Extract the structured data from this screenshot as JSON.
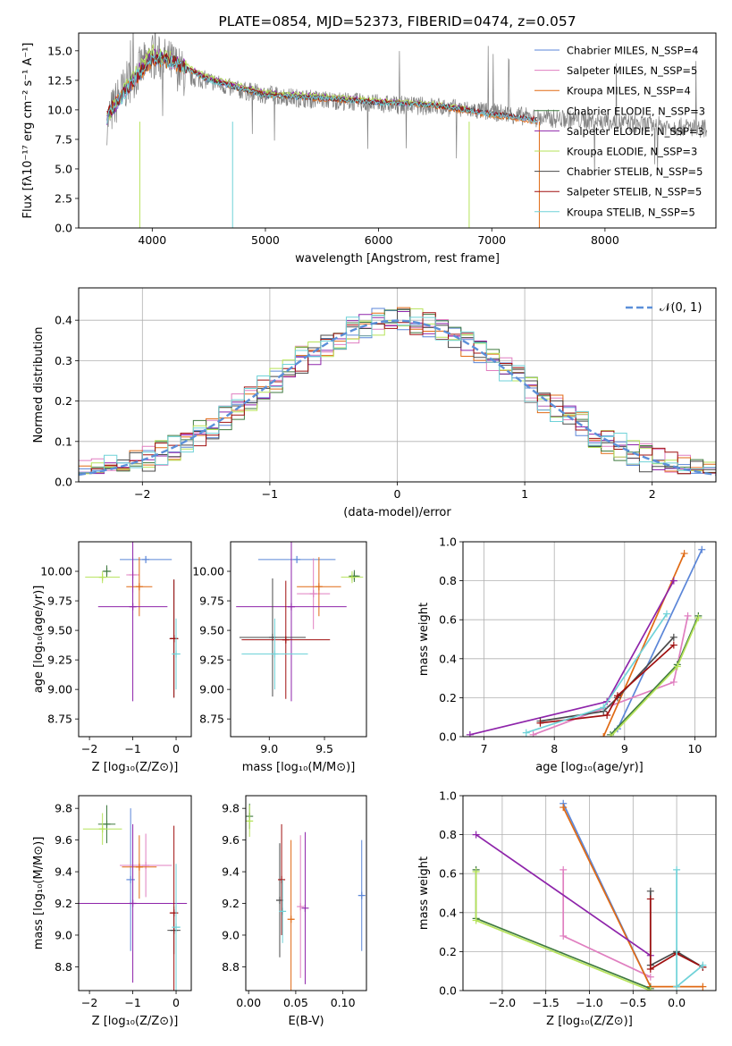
{
  "colors": {
    "chabrier_miles": "#5b86d8",
    "salpeter_miles": "#e07fc0",
    "kroupa_miles": "#e06a14",
    "chabrier_elodie": "#3f7a3f",
    "salpeter_elodie": "#8e24aa",
    "kroupa_elodie": "#b6e35a",
    "chabrier_stelib": "#4a4a4a",
    "salpeter_stelib": "#a01010",
    "kroupa_stelib": "#6fd2d8",
    "gaussian": "#5b8fd9",
    "observed": "#808080"
  },
  "chart_data": [
    {
      "id": "spectrum",
      "type": "line",
      "title": "PLATE=0854, MJD=52373, FIBERID=0474, z=0.057",
      "xlabel": "wavelength [Angstrom, rest frame]",
      "ylabel": "Flux [fλ10⁻¹⁷ erg cm⁻² s⁻¹ A⁻¹]",
      "xlim": [
        3350,
        8980
      ],
      "ylim": [
        0,
        16.5
      ],
      "xticks": [
        "4000",
        "5000",
        "6000",
        "7000",
        "8000"
      ],
      "yticks": [
        "0.0",
        "2.5",
        "5.0",
        "7.5",
        "10.0",
        "12.5",
        "15.0"
      ],
      "legend_position": "top-right",
      "series": [
        {
          "name": "Chabrier MILES, N_SSP=4",
          "color_key": "chabrier_miles",
          "x": [
            3600,
            3800,
            4000,
            4200,
            4500,
            5000,
            5500,
            6000,
            6500,
            7000,
            7400
          ],
          "y": [
            9.5,
            12.0,
            14.3,
            14.0,
            12.5,
            11.2,
            11.0,
            10.6,
            10.4,
            9.6,
            9.1
          ]
        },
        {
          "name": "Salpeter MILES, N_SSP=5",
          "color_key": "salpeter_miles",
          "x": [
            3600,
            3800,
            4000,
            4200,
            4500,
            5000,
            5500,
            6000,
            6500,
            7000,
            7400
          ],
          "y": [
            9.6,
            12.1,
            14.4,
            14.0,
            12.6,
            11.3,
            11.0,
            10.7,
            10.4,
            9.6,
            9.1
          ]
        },
        {
          "name": "Kroupa MILES, N_SSP=4",
          "color_key": "kroupa_miles",
          "x": [
            3600,
            3800,
            4000,
            4200,
            4500,
            5000,
            5500,
            6000,
            6500,
            7000,
            7400
          ],
          "y": [
            9.5,
            12.0,
            14.2,
            13.9,
            12.5,
            11.2,
            10.9,
            10.6,
            10.3,
            9.5,
            9.0
          ]
        },
        {
          "name": "Chabrier ELODIE, N_SSP=3",
          "color_key": "chabrier_elodie",
          "x": [
            3600,
            3800,
            4000,
            4200,
            4500,
            5000,
            5500,
            6000,
            6500,
            6800
          ],
          "y": [
            9.4,
            12.2,
            14.6,
            14.1,
            12.6,
            11.4,
            11.1,
            10.7,
            10.4,
            10.0
          ]
        },
        {
          "name": "Salpeter ELODIE, N_SSP=3",
          "color_key": "salpeter_elodie",
          "x": [
            3600,
            3800,
            4000,
            4200,
            4500,
            5000,
            5500,
            6000,
            6500,
            6800
          ],
          "y": [
            9.3,
            12.3,
            14.8,
            14.2,
            12.7,
            11.5,
            11.2,
            10.8,
            10.5,
            10.1
          ]
        },
        {
          "name": "Kroupa ELODIE, N_SSP=3",
          "color_key": "kroupa_elodie",
          "x": [
            3600,
            3800,
            4000,
            4200,
            4500,
            5000,
            5500,
            6000,
            6500,
            6800
          ],
          "y": [
            9.4,
            12.4,
            15.0,
            14.3,
            12.8,
            11.5,
            11.2,
            10.8,
            10.5,
            10.1
          ]
        },
        {
          "name": "Chabrier STELIB, N_SSP=5",
          "color_key": "chabrier_stelib",
          "x": [
            3600,
            3800,
            4000,
            4200,
            4500,
            5000,
            5500,
            6000,
            6500,
            7000,
            7400
          ],
          "y": [
            9.5,
            12.0,
            14.3,
            14.0,
            12.5,
            11.2,
            11.0,
            10.6,
            10.4,
            9.7,
            9.2
          ]
        },
        {
          "name": "Salpeter STELIB, N_SSP=5",
          "color_key": "salpeter_stelib",
          "x": [
            3600,
            3800,
            4000,
            4200,
            4500,
            5000,
            5500,
            6000,
            6500,
            7000,
            7400
          ],
          "y": [
            9.6,
            12.1,
            14.4,
            14.1,
            12.6,
            11.3,
            11.0,
            10.7,
            10.4,
            9.7,
            9.2
          ]
        },
        {
          "name": "Kroupa STELIB, N_SSP=5",
          "color_key": "kroupa_stelib",
          "x": [
            3600,
            3800,
            4000,
            4200,
            4500,
            5000,
            5500,
            6000,
            6500,
            7000,
            7400
          ],
          "y": [
            9.4,
            12.0,
            14.5,
            14.0,
            12.5,
            11.2,
            11.0,
            10.6,
            10.4,
            9.6,
            9.1
          ]
        }
      ],
      "observed": {
        "color_key": "observed",
        "x": [
          3600,
          3700,
          3800,
          3900,
          4000,
          4100,
          4200,
          4300,
          4500,
          4700,
          5000,
          5300,
          5600,
          5900,
          6200,
          6500,
          6800,
          7100,
          7400,
          7700,
          8000,
          8300,
          8600,
          8900
        ],
        "y": [
          9.0,
          11.0,
          12.5,
          13.5,
          14.5,
          14.2,
          13.8,
          12.8,
          12.5,
          11.8,
          11.3,
          11.0,
          10.8,
          10.6,
          10.4,
          10.3,
          10.0,
          9.7,
          9.3,
          9.2,
          9.0,
          8.8,
          8.6,
          8.4
        ]
      }
    },
    {
      "id": "residuals",
      "type": "line",
      "xlabel": "(data-model)/error",
      "ylabel": "Normed distribution",
      "xlim": [
        -2.5,
        2.5
      ],
      "ylim": [
        0,
        0.48
      ],
      "xticks": [
        "−2",
        "−1",
        "0",
        "1",
        "2"
      ],
      "yticks": [
        "0.0",
        "0.1",
        "0.2",
        "0.3",
        "0.4"
      ],
      "grid": true,
      "legend_position": "top-right",
      "legend": "𝒩(0, 1)",
      "gaussian": {
        "mean": 0,
        "sigma": 1
      },
      "histogram_bins": [
        -2.5,
        2.5,
        50
      ]
    },
    {
      "id": "age_vs_z",
      "type": "scatter",
      "xlabel": "Z [log₁₀(Z/Z⊙)]",
      "ylabel": "age  [log₁₀(age/yr)]",
      "xlim": [
        -2.25,
        0.35
      ],
      "ylim": [
        8.6,
        10.25
      ],
      "xticks": [
        "−2",
        "−1",
        "0"
      ],
      "yticks": [
        "8.75",
        "9.00",
        "9.25",
        "9.50",
        "9.75",
        "10.00"
      ],
      "points": [
        {
          "x": -0.7,
          "y": 10.1,
          "xerr": 0.6,
          "yerr": 0.0,
          "color_key": "chabrier_miles"
        },
        {
          "x": -1.0,
          "y": 9.97,
          "xerr": 0.15,
          "yerr": 0.15,
          "color_key": "salpeter_miles"
        },
        {
          "x": -0.85,
          "y": 9.87,
          "xerr": 0.3,
          "yerr": 0.25,
          "color_key": "kroupa_miles"
        },
        {
          "x": -1.6,
          "y": 10.0,
          "xerr": 0.1,
          "yerr": 0.05,
          "color_key": "chabrier_elodie"
        },
        {
          "x": -1.0,
          "y": 9.7,
          "xerr": 0.8,
          "yerr": 0.8,
          "color_key": "salpeter_elodie"
        },
        {
          "x": -1.7,
          "y": 9.95,
          "xerr": 0.4,
          "yerr": 0.05,
          "color_key": "kroupa_elodie"
        },
        {
          "x": -0.05,
          "y": 9.43,
          "xerr": 0.1,
          "yerr": 0.5,
          "color_key": "chabrier_stelib"
        },
        {
          "x": -0.05,
          "y": 9.43,
          "xerr": 0.1,
          "yerr": 0.5,
          "color_key": "salpeter_stelib"
        },
        {
          "x": 0.0,
          "y": 9.3,
          "xerr": 0.1,
          "yerr": 0.3,
          "color_key": "kroupa_stelib"
        }
      ]
    },
    {
      "id": "age_vs_mass",
      "type": "scatter",
      "xlabel": "mass [log₁₀(M/M⊙)]",
      "ylabel": "",
      "xlim": [
        8.65,
        9.88
      ],
      "ylim": [
        8.6,
        10.25
      ],
      "xticks": [
        "9.0",
        "9.5"
      ],
      "yticks": [
        "8.75",
        "9.00",
        "9.25",
        "9.50",
        "9.75",
        "10.00"
      ],
      "points": [
        {
          "x": 9.25,
          "y": 10.1,
          "xerr": 0.35,
          "yerr": 0.0,
          "color_key": "chabrier_miles"
        },
        {
          "x": 9.4,
          "y": 9.81,
          "xerr": 0.15,
          "yerr": 0.3,
          "color_key": "salpeter_miles"
        },
        {
          "x": 9.45,
          "y": 9.87,
          "xerr": 0.2,
          "yerr": 0.25,
          "color_key": "kroupa_miles"
        },
        {
          "x": 9.77,
          "y": 9.96,
          "xerr": 0.05,
          "yerr": 0.05,
          "color_key": "chabrier_elodie"
        },
        {
          "x": 9.2,
          "y": 9.7,
          "xerr": 0.5,
          "yerr": 0.8,
          "color_key": "salpeter_elodie"
        },
        {
          "x": 9.75,
          "y": 9.95,
          "xerr": 0.1,
          "yerr": 0.05,
          "color_key": "kroupa_elodie"
        },
        {
          "x": 9.03,
          "y": 9.44,
          "xerr": 0.3,
          "yerr": 0.5,
          "color_key": "chabrier_stelib"
        },
        {
          "x": 9.15,
          "y": 9.42,
          "xerr": 0.4,
          "yerr": 0.5,
          "color_key": "salpeter_stelib"
        },
        {
          "x": 9.05,
          "y": 9.3,
          "xerr": 0.3,
          "yerr": 0.3,
          "color_key": "kroupa_stelib"
        }
      ]
    },
    {
      "id": "weight_vs_age",
      "type": "line",
      "xlabel": "age  [log₁₀(age/yr)]",
      "ylabel": "mass weight",
      "xlim": [
        6.7,
        10.3
      ],
      "ylim": [
        0,
        1.0
      ],
      "xticks": [
        "7",
        "8",
        "9",
        "10"
      ],
      "yticks": [
        "0.0",
        "0.2",
        "0.4",
        "0.6",
        "0.8",
        "1.0"
      ],
      "grid": true,
      "series": [
        {
          "color_key": "chabrier_miles",
          "x": [
            8.9,
            10.1
          ],
          "y": [
            0.04,
            0.96
          ]
        },
        {
          "color_key": "salpeter_miles",
          "x": [
            7.7,
            9.7,
            9.9
          ],
          "y": [
            0.01,
            0.28,
            0.62
          ]
        },
        {
          "color_key": "kroupa_miles",
          "x": [
            8.7,
            9.85
          ],
          "y": [
            0.0,
            0.94
          ]
        },
        {
          "color_key": "chabrier_elodie",
          "x": [
            8.8,
            9.75,
            10.05
          ],
          "y": [
            0.01,
            0.37,
            0.62
          ]
        },
        {
          "color_key": "salpeter_elodie",
          "x": [
            6.8,
            8.75,
            9.7
          ],
          "y": [
            0.01,
            0.18,
            0.8
          ]
        },
        {
          "color_key": "kroupa_elodie",
          "x": [
            8.8,
            9.75,
            10.05
          ],
          "y": [
            0.0,
            0.36,
            0.61
          ]
        },
        {
          "color_key": "chabrier_stelib",
          "x": [
            7.8,
            8.7,
            8.9,
            9.7
          ],
          "y": [
            0.08,
            0.13,
            0.2,
            0.51
          ]
        },
        {
          "color_key": "salpeter_stelib",
          "x": [
            7.8,
            8.75,
            8.9,
            9.7
          ],
          "y": [
            0.07,
            0.11,
            0.21,
            0.47
          ]
        },
        {
          "color_key": "kroupa_stelib",
          "x": [
            7.6,
            8.7,
            9.6
          ],
          "y": [
            0.02,
            0.15,
            0.63
          ]
        }
      ]
    },
    {
      "id": "mass_vs_z",
      "type": "scatter",
      "xlabel": "Z [log₁₀(Z/Z⊙)]",
      "ylabel": "mass [log₁₀(M/M⊙)]",
      "xlim": [
        -2.25,
        0.35
      ],
      "ylim": [
        8.65,
        9.88
      ],
      "xticks": [
        "−2",
        "−1",
        "0"
      ],
      "yticks": [
        "8.8",
        "9.0",
        "9.2",
        "9.4",
        "9.6",
        "9.8"
      ],
      "points": [
        {
          "x": -1.05,
          "y": 9.35,
          "xerr": 0.1,
          "yerr": 0.45,
          "color_key": "chabrier_miles"
        },
        {
          "x": -0.7,
          "y": 9.44,
          "xerr": 0.6,
          "yerr": 0.2,
          "color_key": "salpeter_miles"
        },
        {
          "x": -0.85,
          "y": 9.43,
          "xerr": 0.4,
          "yerr": 0.2,
          "color_key": "kroupa_miles"
        },
        {
          "x": -1.6,
          "y": 9.7,
          "xerr": 0.2,
          "yerr": 0.12,
          "color_key": "chabrier_elodie"
        },
        {
          "x": -1.0,
          "y": 9.2,
          "xerr": 1.25,
          "yerr": 0.5,
          "color_key": "salpeter_elodie"
        },
        {
          "x": -1.7,
          "y": 9.67,
          "xerr": 0.45,
          "yerr": 0.1,
          "color_key": "kroupa_elodie"
        },
        {
          "x": -0.05,
          "y": 9.03,
          "xerr": 0.15,
          "yerr": 0.15,
          "color_key": "chabrier_stelib"
        },
        {
          "x": -0.05,
          "y": 9.14,
          "xerr": 0.1,
          "yerr": 0.55,
          "color_key": "salpeter_stelib"
        },
        {
          "x": 0.0,
          "y": 9.05,
          "xerr": 0.1,
          "yerr": 0.4,
          "color_key": "kroupa_stelib"
        }
      ]
    },
    {
      "id": "mass_vs_ebv",
      "type": "scatter",
      "xlabel": "E(B-V)",
      "ylabel": "",
      "xlim": [
        -0.003,
        0.125
      ],
      "ylim": [
        8.65,
        9.88
      ],
      "xticks": [
        "0.00",
        "0.05",
        "0.10"
      ],
      "yticks": [
        "8.8",
        "9.0",
        "9.2",
        "9.4",
        "9.6",
        "9.8"
      ],
      "points": [
        {
          "x": 0.12,
          "y": 9.25,
          "xerr": 0.0,
          "yerr": 0.35,
          "color_key": "chabrier_miles"
        },
        {
          "x": 0.055,
          "y": 9.18,
          "xerr": 0.0,
          "yerr": 0.45,
          "color_key": "salpeter_miles"
        },
        {
          "x": 0.045,
          "y": 9.1,
          "xerr": 0.0,
          "yerr": 0.5,
          "color_key": "kroupa_miles"
        },
        {
          "x": 0.001,
          "y": 9.75,
          "xerr": 0.0,
          "yerr": 0.08,
          "color_key": "chabrier_elodie"
        },
        {
          "x": 0.06,
          "y": 9.17,
          "xerr": 0.0,
          "yerr": 0.48,
          "color_key": "salpeter_elodie"
        },
        {
          "x": 0.001,
          "y": 9.72,
          "xerr": 0.0,
          "yerr": 0.1,
          "color_key": "kroupa_elodie"
        },
        {
          "x": 0.033,
          "y": 9.22,
          "xerr": 0.0,
          "yerr": 0.36,
          "color_key": "chabrier_stelib"
        },
        {
          "x": 0.035,
          "y": 9.35,
          "xerr": 0.0,
          "yerr": 0.35,
          "color_key": "salpeter_stelib"
        },
        {
          "x": 0.036,
          "y": 9.15,
          "xerr": 0.0,
          "yerr": 0.2,
          "color_key": "kroupa_stelib"
        }
      ]
    },
    {
      "id": "weight_vs_z",
      "type": "line",
      "xlabel": "Z [log₁₀(Z/Z⊙)]",
      "ylabel": "mass weight",
      "xlim": [
        -2.45,
        0.45
      ],
      "ylim": [
        0,
        1.0
      ],
      "xticks": [
        "−2.0",
        "−1.5",
        "−1.0",
        "−0.5",
        "0.0"
      ],
      "yticks": [
        "0.0",
        "0.2",
        "0.4",
        "0.6",
        "0.8",
        "1.0"
      ],
      "grid": true,
      "series": [
        {
          "color_key": "chabrier_miles",
          "x": [
            -1.3,
            -0.3
          ],
          "y": [
            0.96,
            0.02
          ]
        },
        {
          "color_key": "salpeter_miles",
          "x": [
            -1.3,
            -1.3,
            -0.3
          ],
          "y": [
            0.62,
            0.28,
            0.07
          ]
        },
        {
          "color_key": "kroupa_miles",
          "x": [
            -1.3,
            -0.3,
            0.3
          ],
          "y": [
            0.94,
            0.02,
            0.02
          ]
        },
        {
          "color_key": "chabrier_elodie",
          "x": [
            -2.3,
            -2.3,
            -0.3
          ],
          "y": [
            0.62,
            0.37,
            0.01
          ]
        },
        {
          "color_key": "salpeter_elodie",
          "x": [
            -2.3,
            -0.3
          ],
          "y": [
            0.8,
            0.18
          ]
        },
        {
          "color_key": "kroupa_elodie",
          "x": [
            -2.3,
            -2.3,
            -0.3
          ],
          "y": [
            0.61,
            0.36,
            0.0
          ]
        },
        {
          "color_key": "chabrier_stelib",
          "x": [
            -0.3,
            -0.3,
            0.0,
            0.3
          ],
          "y": [
            0.51,
            0.13,
            0.2,
            0.12
          ]
        },
        {
          "color_key": "salpeter_stelib",
          "x": [
            -0.3,
            -0.3,
            0.0,
            0.3
          ],
          "y": [
            0.47,
            0.11,
            0.19,
            0.12
          ]
        },
        {
          "color_key": "kroupa_stelib",
          "x": [
            0.0,
            0.0,
            0.3
          ],
          "y": [
            0.62,
            0.02,
            0.13
          ]
        }
      ]
    }
  ]
}
